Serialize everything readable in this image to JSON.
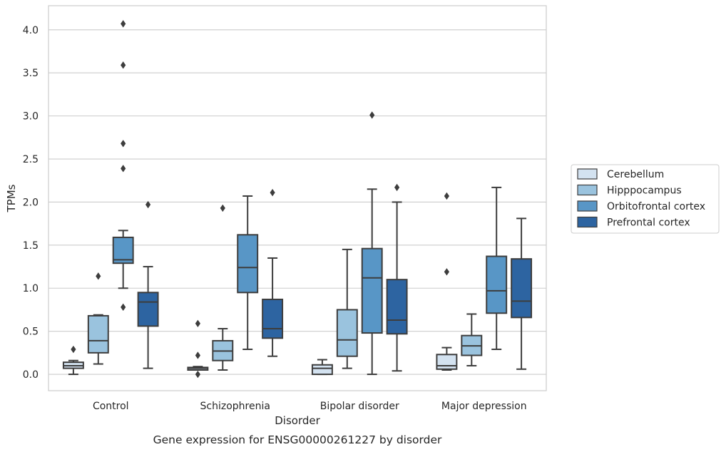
{
  "caption": "Gene expression for ENSG00000261227 by disorder",
  "chart_data": {
    "type": "boxplot",
    "xlabel": "Disorder",
    "ylabel": "TPMs",
    "ylim": [
      -0.19,
      4.28
    ],
    "yticks": [
      0.0,
      0.5,
      1.0,
      1.5,
      2.0,
      2.5,
      3.0,
      3.5,
      4.0
    ],
    "ytick_labels": [
      "0.0",
      "0.5",
      "1.0",
      "1.5",
      "2.0",
      "2.5",
      "3.0",
      "3.5",
      "4.0"
    ],
    "grid": "horizontal",
    "legend_position": "right",
    "categories": [
      "Control",
      "Schizophrenia",
      "Bipolar disorder",
      "Major depression"
    ],
    "series": [
      {
        "name": "Cerebellum",
        "color": "#d3e2f0",
        "boxes": [
          {
            "whislo": 0.0,
            "q1": 0.07,
            "med": 0.1,
            "q3": 0.14,
            "whishi": 0.16,
            "fliers": [
              0.29
            ]
          },
          {
            "whislo": 0.05,
            "q1": 0.05,
            "med": 0.07,
            "q3": 0.08,
            "whishi": 0.09,
            "fliers": [
              0.0,
              0.22,
              0.59
            ]
          },
          {
            "whislo": 0.0,
            "q1": 0.0,
            "med": 0.07,
            "q3": 0.11,
            "whishi": 0.17,
            "fliers": []
          },
          {
            "whislo": 0.05,
            "q1": 0.06,
            "med": 0.1,
            "q3": 0.23,
            "whishi": 0.31,
            "fliers": [
              1.19,
              2.07
            ]
          }
        ]
      },
      {
        "name": "Hipppocampus",
        "color": "#9ac3de",
        "boxes": [
          {
            "whislo": 0.12,
            "q1": 0.25,
            "med": 0.39,
            "q3": 0.68,
            "whishi": 0.69,
            "fliers": [
              1.14
            ]
          },
          {
            "whislo": 0.05,
            "q1": 0.16,
            "med": 0.27,
            "q3": 0.39,
            "whishi": 0.53,
            "fliers": [
              1.93
            ]
          },
          {
            "whislo": 0.07,
            "q1": 0.21,
            "med": 0.4,
            "q3": 0.75,
            "whishi": 1.45,
            "fliers": []
          },
          {
            "whislo": 0.1,
            "q1": 0.22,
            "med": 0.33,
            "q3": 0.45,
            "whishi": 0.7,
            "fliers": []
          }
        ]
      },
      {
        "name": "Orbitofrontal cortex",
        "color": "#5896c6",
        "boxes": [
          {
            "whislo": 1.0,
            "q1": 1.29,
            "med": 1.33,
            "q3": 1.59,
            "whishi": 1.67,
            "fliers": [
              0.78,
              2.39,
              2.68,
              3.59,
              4.07
            ]
          },
          {
            "whislo": 0.29,
            "q1": 0.95,
            "med": 1.24,
            "q3": 1.62,
            "whishi": 2.07,
            "fliers": []
          },
          {
            "whislo": 0.0,
            "q1": 0.48,
            "med": 1.12,
            "q3": 1.46,
            "whishi": 2.15,
            "fliers": [
              3.01
            ]
          },
          {
            "whislo": 0.29,
            "q1": 0.71,
            "med": 0.97,
            "q3": 1.37,
            "whishi": 2.17,
            "fliers": []
          }
        ]
      },
      {
        "name": "Prefrontal cortex",
        "color": "#2d64a1",
        "boxes": [
          {
            "whislo": 0.07,
            "q1": 0.56,
            "med": 0.84,
            "q3": 0.95,
            "whishi": 1.25,
            "fliers": [
              1.97
            ]
          },
          {
            "whislo": 0.21,
            "q1": 0.42,
            "med": 0.53,
            "q3": 0.87,
            "whishi": 1.35,
            "fliers": [
              2.11
            ]
          },
          {
            "whislo": 0.04,
            "q1": 0.47,
            "med": 0.63,
            "q3": 1.1,
            "whishi": 2.0,
            "fliers": [
              2.17
            ]
          },
          {
            "whislo": 0.06,
            "q1": 0.66,
            "med": 0.85,
            "q3": 1.34,
            "whishi": 1.81,
            "fliers": []
          }
        ]
      }
    ]
  }
}
